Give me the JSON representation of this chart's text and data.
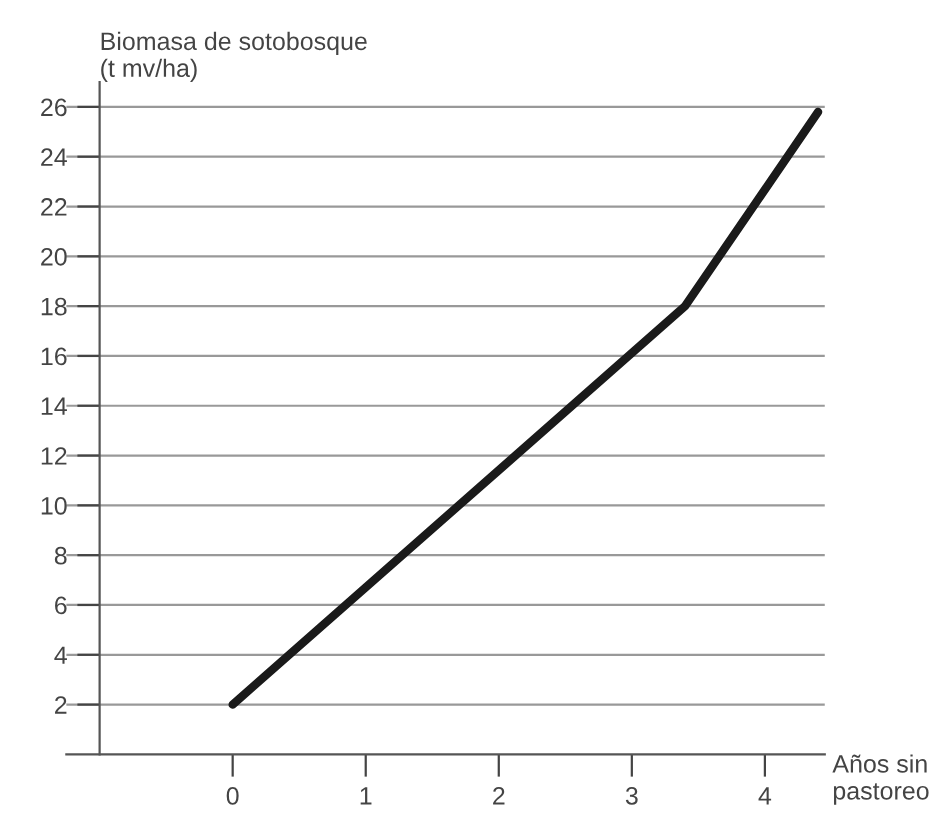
{
  "chart_data": {
    "type": "line",
    "ylabel": "Biomasa de sotobosque\n(t mv/ha)",
    "xlabel": "Años sin\npastoreo",
    "x": [
      0,
      3.4,
      4.4
    ],
    "series": [
      {
        "color": "#1a1a1a",
        "values": [
          2,
          18,
          25.8
        ]
      }
    ],
    "xlim": [
      -1.25,
      4.45
    ],
    "ylim": [
      0,
      27
    ],
    "xticks": [
      0,
      1,
      2,
      3,
      4
    ],
    "yticks": [
      2,
      4,
      6,
      8,
      10,
      12,
      14,
      16,
      18,
      20,
      22,
      24,
      26
    ],
    "grid": "y",
    "marker": "none",
    "line_style": "solid",
    "legend": false
  }
}
